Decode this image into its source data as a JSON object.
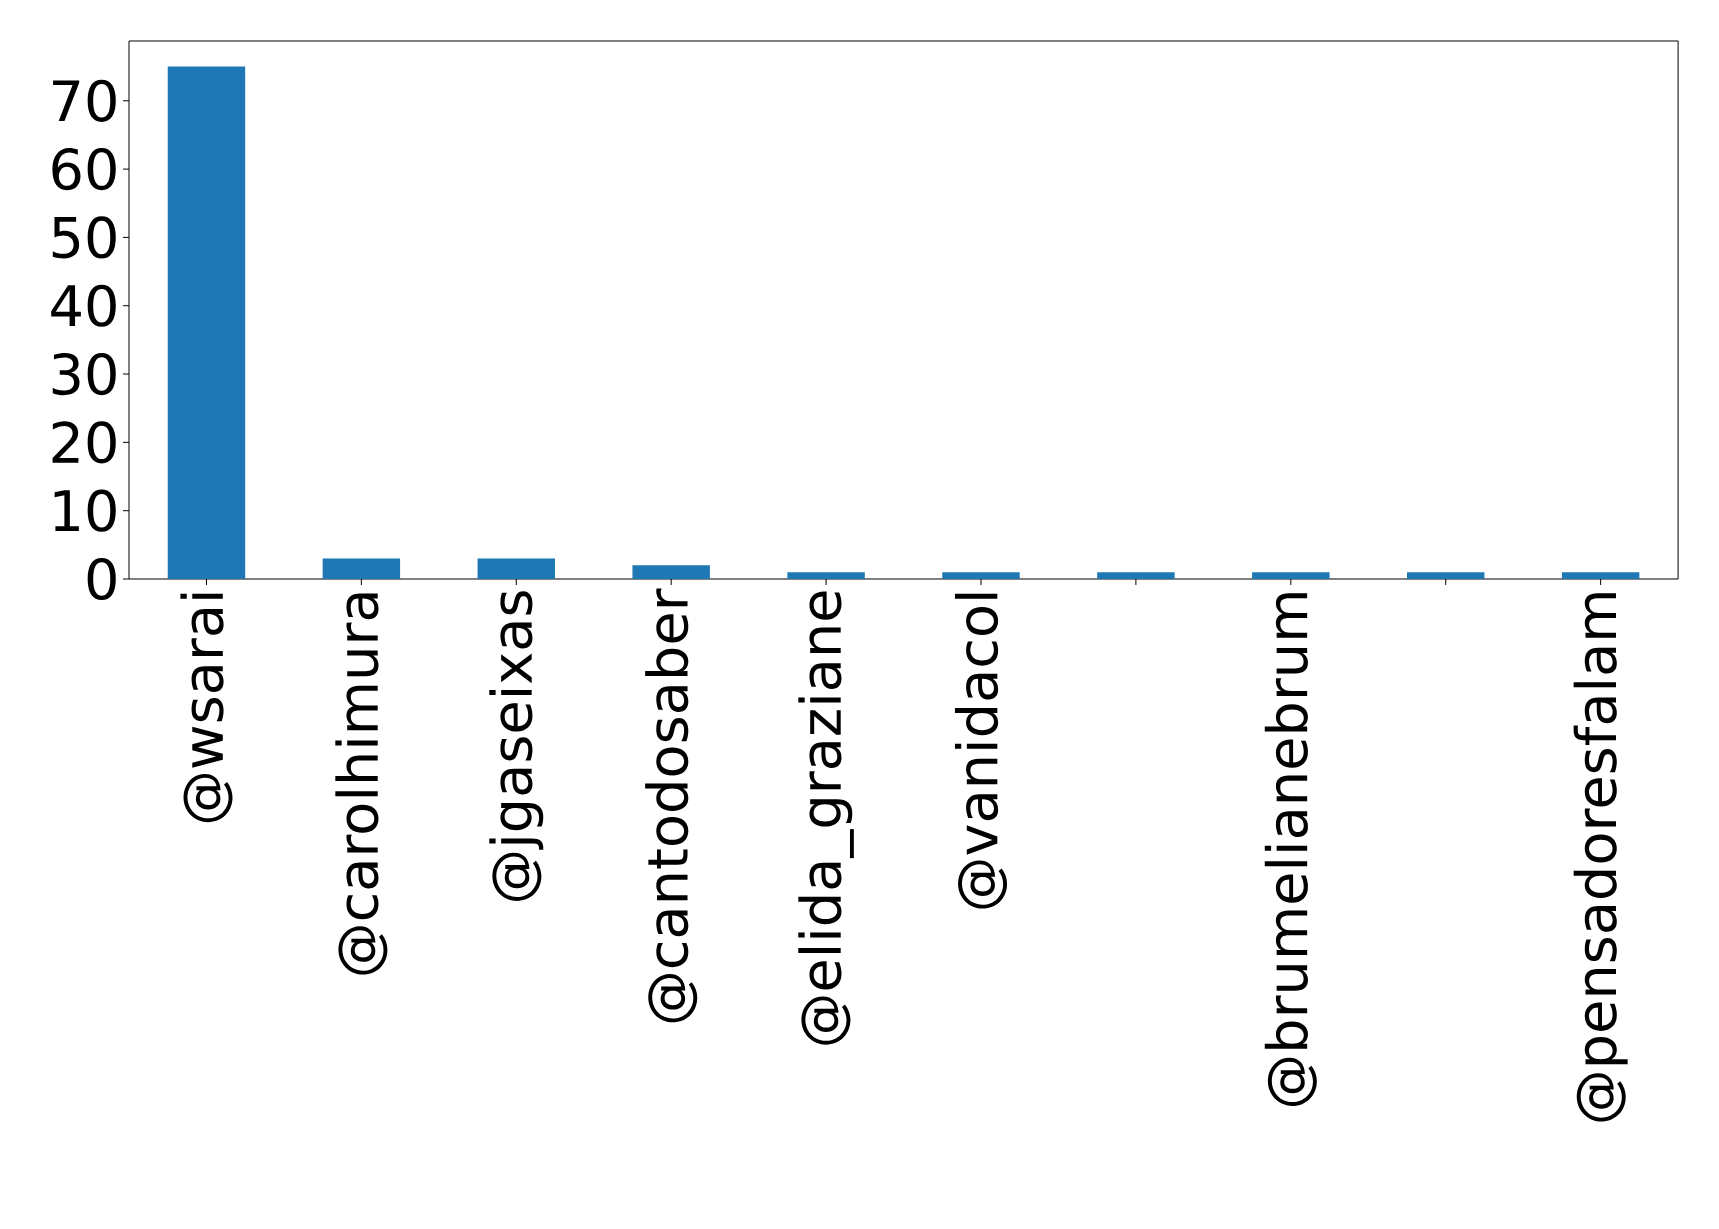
{
  "chart_data": {
    "type": "bar",
    "categories": [
      "@wsarai",
      "@carolhimura",
      "@jgaseixas",
      "@cantodosaber",
      "@elida_graziane",
      "@vanidacol",
      null,
      "@brumelianebrum",
      null,
      "@pensadoresfalam"
    ],
    "values": [
      75,
      3,
      3,
      2,
      1,
      1,
      1,
      1,
      1,
      1
    ],
    "color": "#1f77b4",
    "ylim": [
      0,
      78.75
    ],
    "yticks": [
      0,
      10,
      20,
      30,
      40,
      50,
      60,
      70
    ],
    "grid": false
  }
}
